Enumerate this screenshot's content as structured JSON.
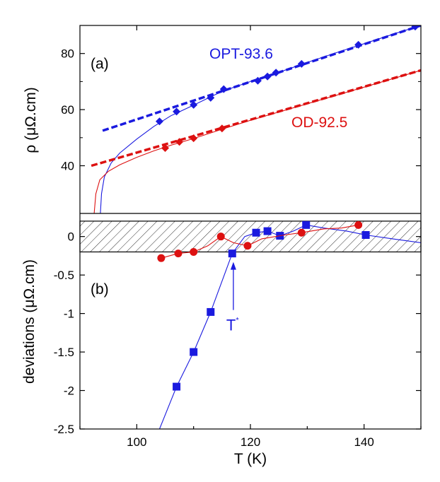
{
  "chart_data": [
    {
      "panel_label": "(a)",
      "type": "scatter",
      "xlabel": "T (K)",
      "ylabel": "ρ (μΩ.cm)",
      "xlim": [
        90,
        150
      ],
      "ylim": [
        23,
        90
      ],
      "yticks": [
        40,
        60,
        80
      ],
      "series": [
        {
          "name": "OPT-93.6",
          "color": "#1a1adf",
          "marker": "diamond",
          "points": [
            [
              104,
              55.8
            ],
            [
              107,
              59.3
            ],
            [
              110,
              61.7
            ],
            [
              113,
              64.2
            ],
            [
              115.3,
              67.3
            ],
            [
              121.3,
              70.3
            ],
            [
              123,
              71.8
            ],
            [
              124.5,
              73.2
            ],
            [
              129,
              76.3
            ],
            [
              139,
              83.1
            ],
            [
              149,
              89.6
            ]
          ],
          "linear_fit": [
            [
              94,
              52.5
            ],
            [
              150,
              90
            ]
          ],
          "fit_curve": [
            [
              93.6,
              23
            ],
            [
              93.8,
              30
            ],
            [
              94.3,
              36
            ],
            [
              95.5,
              41
            ],
            [
              97,
              44.5
            ],
            [
              100,
              49.5
            ],
            [
              103,
              54
            ],
            [
              106,
              57.8
            ],
            [
              110,
              61.6
            ],
            [
              115,
              66.5
            ],
            [
              120,
              70
            ],
            [
              125,
              73.3
            ],
            [
              130,
              76.8
            ],
            [
              135,
              80.2
            ],
            [
              140,
              83.5
            ],
            [
              145,
              86.8
            ],
            [
              150,
              90
            ]
          ]
        },
        {
          "name": "OD-92.5",
          "color": "#dd1111",
          "marker": "diamond",
          "points": [
            [
              105,
              46.3
            ],
            [
              107.5,
              48.5
            ],
            [
              110,
              49.8
            ],
            [
              115,
              53.3
            ]
          ],
          "linear_fit": [
            [
              92,
              40
            ],
            [
              150,
              74
            ]
          ],
          "fit_curve": [
            [
              92.5,
              23
            ],
            [
              92.8,
              30
            ],
            [
              93.5,
              35
            ],
            [
              95,
              38
            ],
            [
              97,
              40.3
            ],
            [
              100,
              43
            ],
            [
              103,
              45.3
            ],
            [
              106,
              47.3
            ],
            [
              110,
              49.7
            ],
            [
              115,
              53
            ],
            [
              120,
              56.2
            ],
            [
              130,
              62.1
            ],
            [
              140,
              68
            ],
            [
              150,
              74
            ]
          ]
        }
      ]
    },
    {
      "panel_label": "(b)",
      "type": "scatter",
      "xlabel": "T (K)",
      "ylabel": "deviations (μΩ.cm)",
      "xlim": [
        90,
        150
      ],
      "ylim": [
        -2.5,
        0.3
      ],
      "xticks": [
        100,
        120,
        140
      ],
      "yticks": [
        0,
        -0.5,
        -1,
        -1.5,
        -2,
        -2.5
      ],
      "yticklabels": [
        "0",
        "-0.5",
        "-1",
        "-1.5",
        "-2",
        "-2.5"
      ],
      "hatched_band": [
        -0.2,
        0.2
      ],
      "annotation": {
        "text": "T",
        "superscript": "*",
        "at_x": 117,
        "at_y": -0.22,
        "color": "#1a1adf"
      },
      "series": [
        {
          "name": "OPT-93.6",
          "color": "#1a1adf",
          "marker": "square",
          "points": [
            [
              107,
              -1.95
            ],
            [
              110,
              -1.5
            ],
            [
              113,
              -0.98
            ],
            [
              116.8,
              -0.22
            ],
            [
              121,
              0.05
            ],
            [
              123,
              0.07
            ],
            [
              125.2,
              0.01
            ],
            [
              129.8,
              0.15
            ],
            [
              140.3,
              0.02
            ]
          ],
          "curve": [
            [
              104,
              -2.5
            ],
            [
              107,
              -1.95
            ],
            [
              110,
              -1.5
            ],
            [
              113,
              -0.98
            ],
            [
              116.8,
              -0.22
            ],
            [
              119,
              0.0
            ],
            [
              121,
              0.05
            ],
            [
              123,
              0.07
            ],
            [
              125.2,
              0.01
            ],
            [
              127.5,
              0.07
            ],
            [
              129.8,
              0.15
            ],
            [
              133,
              0.11
            ],
            [
              137,
              0.07
            ],
            [
              140.3,
              0.02
            ],
            [
              145,
              -0.03
            ],
            [
              150,
              -0.08
            ]
          ]
        },
        {
          "name": "OD-92.5",
          "color": "#dd1111",
          "marker": "circle",
          "points": [
            [
              104.3,
              -0.28
            ],
            [
              107.3,
              -0.22
            ],
            [
              110,
              -0.2
            ],
            [
              114.8,
              0.0
            ],
            [
              119.5,
              -0.12
            ],
            [
              129,
              0.05
            ],
            [
              139,
              0.15
            ]
          ],
          "curve": [
            [
              104.3,
              -0.28
            ],
            [
              107.3,
              -0.22
            ],
            [
              110,
              -0.2
            ],
            [
              112.5,
              -0.12
            ],
            [
              114.8,
              0.0
            ],
            [
              117,
              -0.08
            ],
            [
              119.5,
              -0.12
            ],
            [
              122,
              -0.03
            ],
            [
              126,
              0.02
            ],
            [
              129,
              0.05
            ],
            [
              133,
              0.1
            ],
            [
              136,
              0.11
            ],
            [
              139,
              0.15
            ]
          ]
        }
      ]
    }
  ]
}
